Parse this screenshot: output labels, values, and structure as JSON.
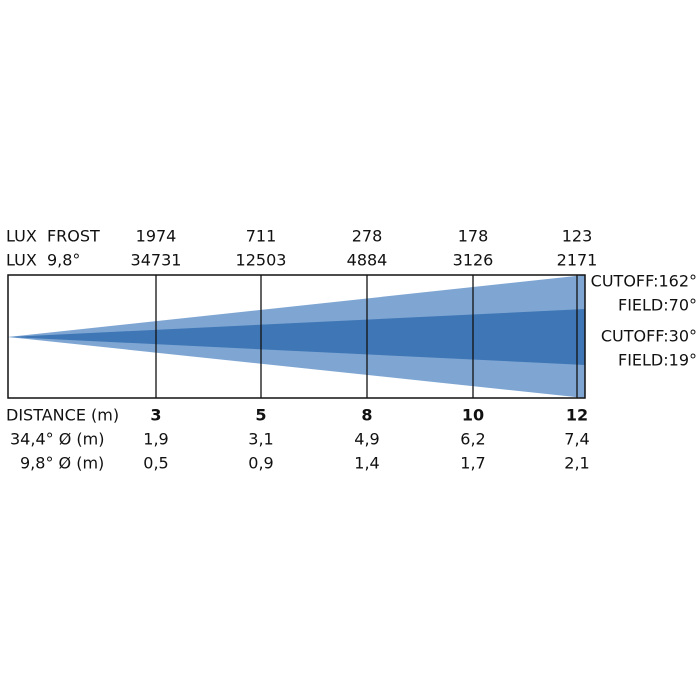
{
  "header_rows": [
    {
      "label": "LUX  FROST",
      "values": [
        "1974",
        "711",
        "278",
        "178",
        "123"
      ]
    },
    {
      "label": "LUX  9,8°",
      "values": [
        "34731",
        "12503",
        "4884",
        "3126",
        "2171"
      ]
    }
  ],
  "beam_labels": [
    "CUTOFF:162°",
    "FIELD:70°",
    "CUTOFF:30°",
    "FIELD:19°"
  ],
  "footer_rows": [
    {
      "label": "DISTANCE (m)",
      "values": [
        "3",
        "5",
        "8",
        "10",
        "12"
      ]
    },
    {
      "label": "34,4° Ø (m)",
      "values": [
        "1,9",
        "3,1",
        "4,9",
        "6,2",
        "7,4"
      ]
    },
    {
      "label": "9,8° Ø (m)",
      "values": [
        "0,5",
        "0,9",
        "1,4",
        "1,7",
        "2,1"
      ]
    }
  ]
}
